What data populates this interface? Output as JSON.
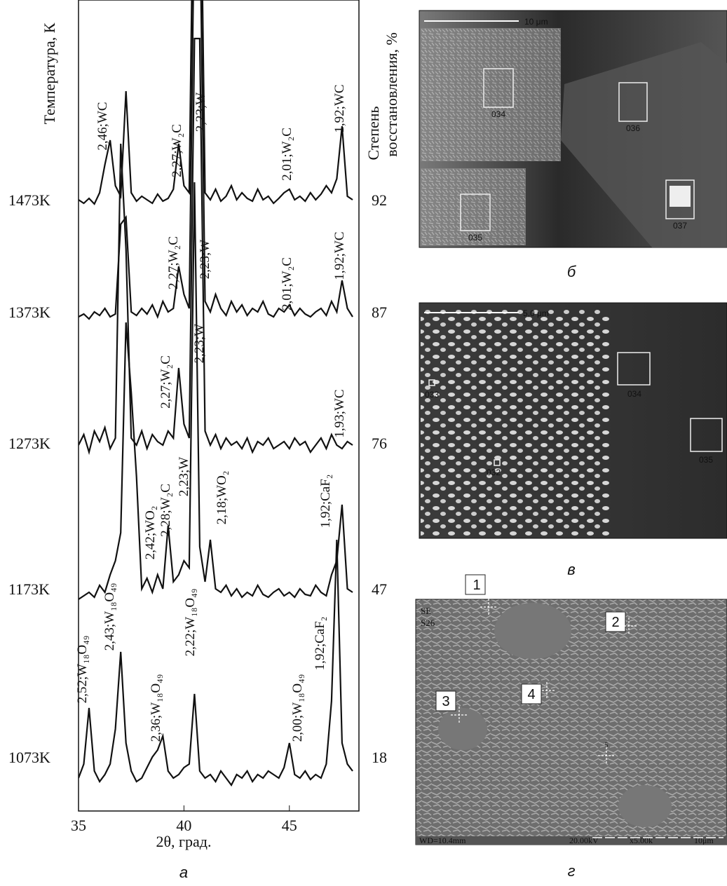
{
  "chart_data": {
    "type": "line",
    "x_label": "2θ, град.",
    "y_label": "Температура, К",
    "y2_label_1": "Степень",
    "y2_label_2": "восстановления, %",
    "caption": "а",
    "xlim": [
      35,
      48.3
    ],
    "xticks": [
      35,
      40,
      45
    ],
    "x": [
      35,
      35.25,
      35.5,
      35.75,
      36,
      36.25,
      36.5,
      36.75,
      37,
      37.25,
      37.5,
      37.75,
      38,
      38.25,
      38.5,
      38.75,
      39,
      39.25,
      39.5,
      39.75,
      40,
      40.25,
      40.5,
      40.75,
      41,
      41.25,
      41.5,
      41.75,
      42,
      42.25,
      42.5,
      42.75,
      43,
      43.25,
      43.5,
      43.75,
      44,
      44.25,
      44.5,
      44.75,
      45,
      45.25,
      45.5,
      45.75,
      46,
      46.25,
      46.5,
      46.75,
      47,
      47.25,
      47.5,
      47.75,
      48
    ],
    "series": [
      {
        "name": "1473K",
        "reduction": 92,
        "color": "#111111",
        "values": [
          10,
          5,
          12,
          4,
          20,
          60,
          95,
          30,
          15,
          165,
          20,
          8,
          15,
          10,
          5,
          18,
          8,
          12,
          25,
          90,
          30,
          20,
          600,
          600,
          20,
          10,
          25,
          8,
          15,
          30,
          10,
          20,
          12,
          8,
          25,
          10,
          15,
          5,
          12,
          20,
          25,
          10,
          15,
          8,
          20,
          10,
          18,
          30,
          20,
          40,
          115,
          15,
          10
        ]
      },
      {
        "name": "1373K",
        "reduction": 87,
        "color": "#111111",
        "values": [
          8,
          12,
          5,
          15,
          10,
          20,
          8,
          12,
          140,
          150,
          15,
          10,
          20,
          12,
          25,
          8,
          30,
          15,
          20,
          80,
          40,
          20,
          600,
          600,
          30,
          15,
          40,
          20,
          10,
          30,
          15,
          25,
          10,
          20,
          15,
          30,
          12,
          8,
          20,
          15,
          25,
          10,
          20,
          12,
          8,
          15,
          20,
          10,
          30,
          15,
          60,
          20,
          8
        ]
      },
      {
        "name": "1273K",
        "reduction": 76,
        "color": "#111111",
        "values": [
          20,
          35,
          10,
          40,
          25,
          45,
          15,
          30,
          450,
          300,
          30,
          20,
          40,
          15,
          35,
          25,
          20,
          40,
          30,
          130,
          50,
          30,
          600,
          600,
          40,
          20,
          35,
          15,
          30,
          20,
          25,
          15,
          30,
          10,
          25,
          20,
          30,
          15,
          20,
          25,
          15,
          30,
          20,
          25,
          10,
          20,
          30,
          15,
          35,
          20,
          15,
          25,
          20
        ]
      },
      {
        "name": "1173K",
        "reduction": 47,
        "color": "#111111",
        "values": [
          5,
          10,
          15,
          8,
          25,
          15,
          40,
          60,
          100,
          400,
          300,
          180,
          20,
          35,
          15,
          40,
          20,
          110,
          30,
          40,
          60,
          50,
          600,
          80,
          30,
          90,
          20,
          15,
          25,
          10,
          20,
          8,
          15,
          10,
          25,
          12,
          8,
          15,
          20,
          10,
          15,
          8,
          20,
          12,
          10,
          25,
          15,
          10,
          40,
          60,
          140,
          20,
          15
        ]
      },
      {
        "name": "1073K",
        "reduction": 18,
        "color": "#111111",
        "values": [
          10,
          30,
          110,
          20,
          5,
          15,
          30,
          80,
          190,
          60,
          20,
          5,
          10,
          25,
          40,
          50,
          70,
          20,
          10,
          15,
          25,
          30,
          130,
          20,
          10,
          15,
          5,
          20,
          10,
          0,
          15,
          10,
          20,
          5,
          15,
          10,
          20,
          15,
          10,
          25,
          60,
          15,
          10,
          20,
          8,
          15,
          10,
          30,
          120,
          350,
          60,
          30,
          20
        ]
      }
    ],
    "annotations": [
      "2,46;WC",
      "2,27;W₂C",
      "2,23;W",
      "2,01;W₂C",
      "1,92;WC",
      "2,27;W₂C",
      "2,23;W",
      "2,01;W₂C",
      "1,92;WC",
      "2,27;W₂C",
      "2,23;W",
      "1,93;WC",
      "2,42;WO₂",
      "2,28;W₂C",
      "2,23;W",
      "2,18;WO₂",
      "1,92;CaF₂",
      "2,52;W₁₈O₄₉",
      "2,43;W₁₈O₄₉",
      "2,36;W₁₈O₄₉",
      "2,22;W₁₈O₄₉",
      "2,00;W₁₈O₄₉",
      "1,92;CaF₂"
    ]
  },
  "panels": [
    {
      "caption": "б",
      "scale": "10 μm",
      "labels": [
        "034",
        "036",
        "035",
        "037"
      ]
    },
    {
      "caption": "в",
      "scale": "5,0 μm",
      "labels": [
        "033",
        "034",
        "032",
        "035"
      ]
    },
    {
      "caption": "г",
      "scale": "10μm",
      "labels": [
        "SE",
        "S26",
        "1",
        "2",
        "3",
        "4",
        "5",
        "WD=10.4mm",
        "20.00kV",
        "x5.00k"
      ]
    }
  ]
}
